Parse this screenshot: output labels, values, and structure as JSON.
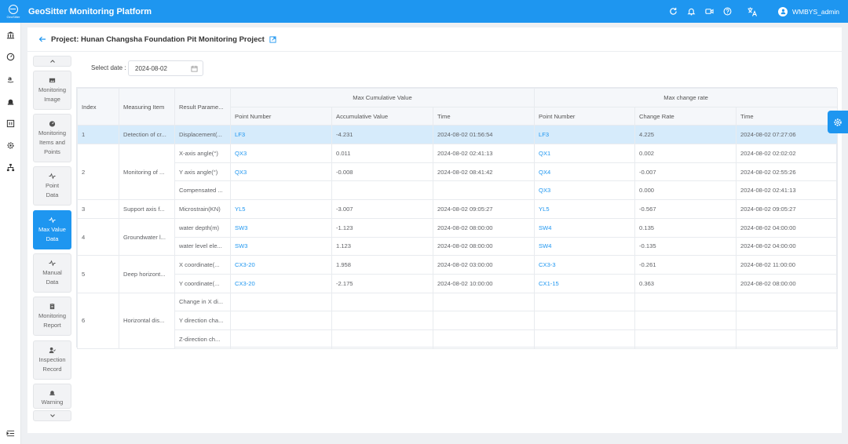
{
  "app": {
    "logo_text": "GeoSitter",
    "title": "GeoSitter Monitoring Platform",
    "user_name": "WMBYS_admin"
  },
  "header_icons": [
    "refresh-icon",
    "bell-icon",
    "video-icon",
    "help-icon",
    "translate-icon"
  ],
  "project": {
    "title": "Project: Hunan Changsha Foundation Pit Monitoring Project"
  },
  "side_tabs": [
    {
      "label_lines": [
        "Monitoring",
        "Image"
      ],
      "icon": "image-icon"
    },
    {
      "label_lines": [
        "Monitoring",
        "Items and",
        "Points"
      ],
      "icon": "gauge-icon"
    },
    {
      "label_lines": [
        "Point",
        "Data"
      ],
      "icon": "pulse-icon"
    },
    {
      "label_lines": [
        "Max Value",
        "Data"
      ],
      "icon": "pulse-icon",
      "active": true
    },
    {
      "label_lines": [
        "Manual",
        "Data"
      ],
      "icon": "pulse-icon"
    },
    {
      "label_lines": [
        "Monitoring",
        "Report"
      ],
      "icon": "report-icon"
    },
    {
      "label_lines": [
        "Inspection",
        "Record"
      ],
      "icon": "inspector-icon"
    },
    {
      "label_lines": [
        "Warning"
      ],
      "icon": "alarm-icon"
    }
  ],
  "filter": {
    "label": "Select date :",
    "date": "2024-08-02"
  },
  "table": {
    "headers": {
      "index": "Index",
      "item": "Measuring Item",
      "param": "Result Parame...",
      "group_cum": "Max Cumulative Value",
      "group_rate": "Max change rate",
      "point": "Point Number",
      "acc": "Accumulative Value",
      "time": "Time",
      "point2": "Point Number",
      "rate": "Change Rate",
      "time2": "Time"
    },
    "groups": [
      {
        "index": "1",
        "item": "Detection of cr...",
        "rows": [
          {
            "param": "Displacement(...",
            "point": "LF3",
            "acc": "-4.231",
            "time": "2024-08-02 01:56:54",
            "point2": "LF3",
            "rate": "4.225",
            "time2": "2024-08-02 07:27:06"
          }
        ]
      },
      {
        "index": "2",
        "item": "Monitoring of ...",
        "rows": [
          {
            "param": "X-axis angle(°)",
            "point": "QX3",
            "acc": "0.011",
            "time": "2024-08-02 02:41:13",
            "point2": "QX1",
            "rate": "0.002",
            "time2": "2024-08-02 02:02:02"
          },
          {
            "param": "Y axis angle(°)",
            "point": "QX3",
            "acc": "-0.008",
            "time": "2024-08-02 08:41:42",
            "point2": "QX4",
            "rate": "-0.007",
            "time2": "2024-08-02 02:55:26"
          },
          {
            "param": "Compensated ...",
            "point": "",
            "acc": "",
            "time": "",
            "point2": "QX3",
            "rate": "0.000",
            "time2": "2024-08-02 02:41:13"
          }
        ]
      },
      {
        "index": "3",
        "item": "Support axis f...",
        "rows": [
          {
            "param": "Microstrain(KN)",
            "point": "YL5",
            "acc": "-3.007",
            "time": "2024-08-02 09:05:27",
            "point2": "YL5",
            "rate": "-0.567",
            "time2": "2024-08-02 09:05:27"
          }
        ]
      },
      {
        "index": "4",
        "item": "Groundwater l...",
        "rows": [
          {
            "param": "water depth(m)",
            "point": "SW3",
            "acc": "-1.123",
            "time": "2024-08-02 08:00:00",
            "point2": "SW4",
            "rate": "0.135",
            "time2": "2024-08-02 04:00:00"
          },
          {
            "param": "water level ele...",
            "point": "SW3",
            "acc": "1.123",
            "time": "2024-08-02 08:00:00",
            "point2": "SW4",
            "rate": "-0.135",
            "time2": "2024-08-02 04:00:00"
          }
        ]
      },
      {
        "index": "5",
        "item": "Deep horizont...",
        "rows": [
          {
            "param": "X coordinate(...",
            "point": "CX3-20",
            "acc": "1.958",
            "time": "2024-08-02 03:00:00",
            "point2": "CX3-3",
            "rate": "-0.261",
            "time2": "2024-08-02 11:00:00"
          },
          {
            "param": "Y coordinate(...",
            "point": "CX3-20",
            "acc": "-2.175",
            "time": "2024-08-02 10:00:00",
            "point2": "CX1-15",
            "rate": "0.363",
            "time2": "2024-08-02 08:00:00"
          }
        ]
      },
      {
        "index": "6",
        "item": "Horizontal dis...",
        "rows": [
          {
            "param": "Change in X di...",
            "point": "",
            "acc": "",
            "time": "",
            "point2": "",
            "rate": "",
            "time2": ""
          },
          {
            "param": "Y direction cha...",
            "point": "",
            "acc": "",
            "time": "",
            "point2": "",
            "rate": "",
            "time2": ""
          },
          {
            "param": "Z-direction ch...",
            "point": "",
            "acc": "",
            "time": "",
            "point2": "",
            "rate": "",
            "time2": ""
          }
        ]
      }
    ]
  },
  "colors": {
    "primary": "#1e96f0",
    "selected_row": "#d6ebfb",
    "header_bg": "#f5f7fa"
  }
}
